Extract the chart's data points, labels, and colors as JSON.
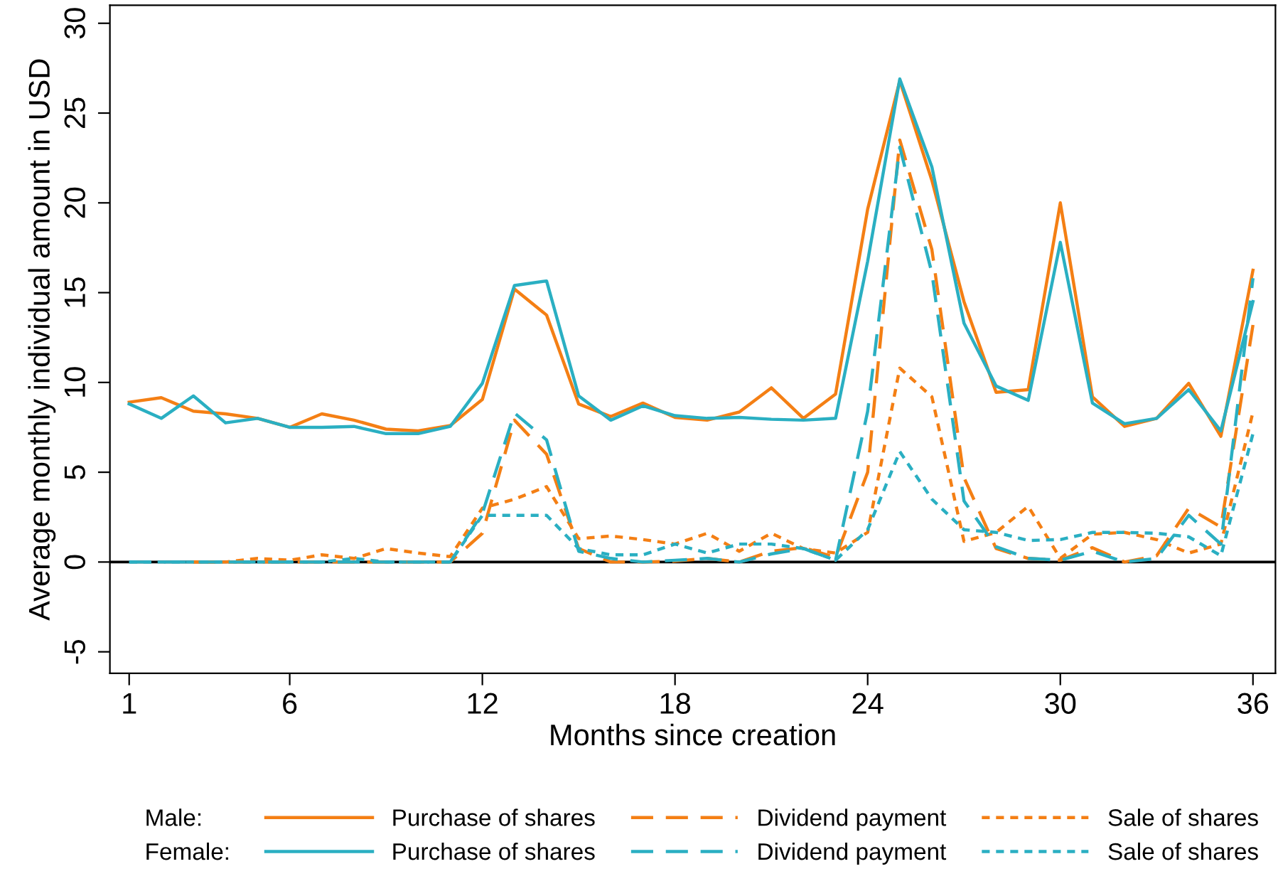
{
  "chart_data": {
    "type": "line",
    "xlabel": "Months since creation",
    "ylabel": "Average monthly individual amount in USD",
    "x": [
      1,
      2,
      3,
      4,
      5,
      6,
      7,
      8,
      9,
      10,
      11,
      12,
      13,
      14,
      15,
      16,
      17,
      18,
      19,
      20,
      21,
      22,
      23,
      24,
      25,
      26,
      27,
      28,
      29,
      30,
      31,
      32,
      33,
      34,
      35,
      36
    ],
    "xlim": [
      0.4,
      36.7
    ],
    "xticks": [
      1,
      6,
      12,
      18,
      24,
      30,
      36
    ],
    "ylim": [
      -6.2,
      31
    ],
    "yticks": [
      -5,
      0,
      5,
      10,
      15,
      20,
      25,
      30
    ],
    "grid": false,
    "legend": "bottom",
    "annotations": [
      "Male:",
      "Female:"
    ],
    "ref_lines": [
      {
        "axis": "y",
        "value": 0,
        "color": "#000000"
      }
    ],
    "series": [
      {
        "name": "Purchase of shares",
        "color": "#f47f14",
        "line_style": "solid",
        "values": [
          8.9,
          9.15,
          8.4,
          8.25,
          8.0,
          7.5,
          8.25,
          7.9,
          7.4,
          7.3,
          7.6,
          9.05,
          15.2,
          13.75,
          8.8,
          8.1,
          8.85,
          8.05,
          7.9,
          8.35,
          9.7,
          8.0,
          9.35,
          19.65,
          26.8,
          21.25,
          14.5,
          9.45,
          9.6,
          20.0,
          9.2,
          7.55,
          8.0,
          9.95,
          7.0,
          16.25
        ]
      },
      {
        "name": "Dividend payment",
        "color": "#f47f14",
        "line_style": "dashed",
        "values": [
          null,
          null,
          0,
          0,
          0,
          0,
          0,
          0,
          0,
          0,
          0,
          1.6,
          7.9,
          6.0,
          0.75,
          0,
          0,
          0.05,
          0.2,
          0,
          0.6,
          0.8,
          0.25,
          5.0,
          23.5,
          17.4,
          4.7,
          0.75,
          0.2,
          0.1,
          0.8,
          0,
          0.35,
          3.0,
          1.95,
          13.2
        ]
      },
      {
        "name": "Sale of shares",
        "color": "#f47f14",
        "line_style": "dotted",
        "values": [
          null,
          null,
          0,
          0,
          0.2,
          0.1,
          0.4,
          0.2,
          0.75,
          0.5,
          0.3,
          3.0,
          3.5,
          4.2,
          1.3,
          1.45,
          1.25,
          1.0,
          1.6,
          0.6,
          1.6,
          0.75,
          0.5,
          1.65,
          10.8,
          9.2,
          1.15,
          1.65,
          3.1,
          0.2,
          1.55,
          1.65,
          1.25,
          0.5,
          1.0,
          8.35
        ]
      },
      {
        "name": "Purchase of shares",
        "color": "#2aafc2",
        "line_style": "solid",
        "values": [
          8.8,
          8.0,
          9.25,
          7.75,
          8.0,
          7.5,
          7.5,
          7.55,
          7.15,
          7.15,
          7.55,
          9.95,
          15.4,
          15.65,
          9.25,
          7.9,
          8.7,
          8.15,
          8.0,
          8.05,
          7.95,
          7.9,
          8.0,
          16.75,
          26.9,
          22.0,
          13.3,
          9.8,
          9.0,
          17.8,
          8.85,
          7.7,
          8.0,
          9.6,
          7.3,
          14.5
        ]
      },
      {
        "name": "Dividend payment",
        "color": "#2aafc2",
        "line_style": "dashed",
        "values": [
          0,
          0,
          0,
          0,
          0,
          0,
          0,
          0,
          0,
          0,
          0,
          2.7,
          8.3,
          6.8,
          0.6,
          0.2,
          0,
          0.1,
          0.2,
          0,
          0.45,
          0.75,
          0.1,
          8.4,
          23.1,
          16.1,
          3.4,
          0.85,
          0.2,
          0.1,
          0.6,
          0,
          0.2,
          2.6,
          1.0,
          15.8
        ]
      },
      {
        "name": "Sale of shares",
        "color": "#2aafc2",
        "line_style": "dotted",
        "values": [
          0,
          0,
          0,
          0,
          0,
          0,
          0,
          0.2,
          0,
          0,
          0,
          2.6,
          2.6,
          2.6,
          0.75,
          0.4,
          0.4,
          1.0,
          0.5,
          1.0,
          1.0,
          0.75,
          0.1,
          1.8,
          6.15,
          3.5,
          1.8,
          1.65,
          1.2,
          1.25,
          1.65,
          1.65,
          1.6,
          1.4,
          0.35,
          7.15
        ]
      }
    ]
  }
}
